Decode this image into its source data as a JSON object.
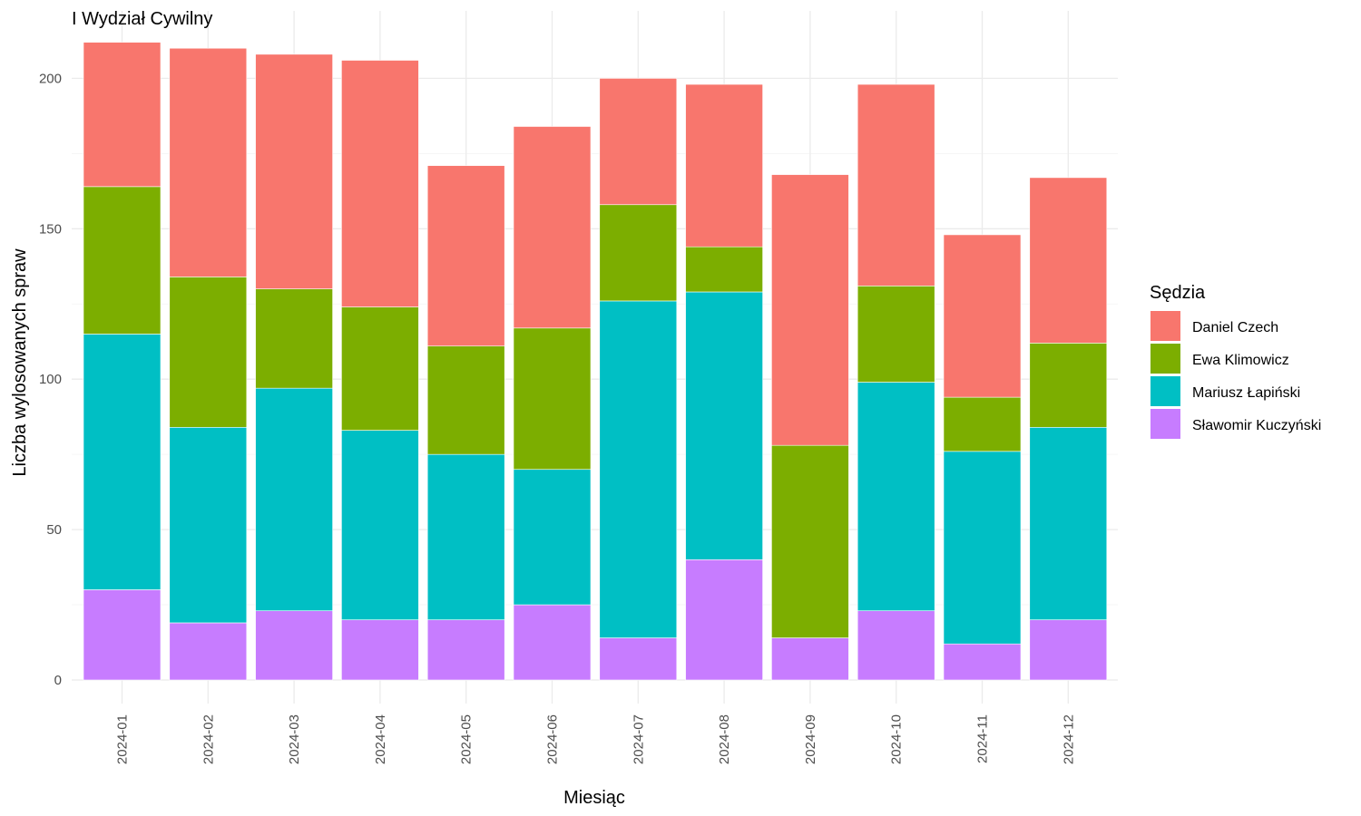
{
  "chart_data": {
    "type": "bar",
    "stacked": true,
    "title": "I Wydział Cywilny",
    "xlabel": "Miesiąc",
    "ylabel": "Liczba wylosowanych spraw",
    "ylim": [
      0,
      215
    ],
    "yticks": [
      0,
      50,
      100,
      150,
      200
    ],
    "grid": true,
    "legend_title": "Sędzia",
    "legend_position": "right",
    "categories": [
      "2024-01",
      "2024-02",
      "2024-03",
      "2024-04",
      "2024-05",
      "2024-06",
      "2024-07",
      "2024-08",
      "2024-09",
      "2024-10",
      "2024-11",
      "2024-12"
    ],
    "stack_order_bottom_to_top": [
      "Sławomir Kuczyński",
      "Mariusz Łapiński",
      "Ewa Klimowicz",
      "Daniel Czech"
    ],
    "series": [
      {
        "name": "Daniel Czech",
        "color": "#F8766D",
        "values": [
          48,
          76,
          78,
          82,
          60,
          67,
          42,
          54,
          90,
          67,
          54,
          55
        ]
      },
      {
        "name": "Ewa Klimowicz",
        "color": "#7CAE00",
        "values": [
          49,
          50,
          33,
          41,
          36,
          47,
          32,
          15,
          64,
          32,
          18,
          28
        ]
      },
      {
        "name": "Mariusz Łapiński",
        "color": "#00BFC4",
        "values": [
          85,
          65,
          74,
          63,
          55,
          45,
          112,
          89,
          0,
          76,
          64,
          64
        ]
      },
      {
        "name": "Sławomir Kuczyński",
        "color": "#C77CFF",
        "values": [
          30,
          19,
          23,
          20,
          20,
          25,
          14,
          40,
          14,
          23,
          12,
          20
        ]
      }
    ]
  }
}
